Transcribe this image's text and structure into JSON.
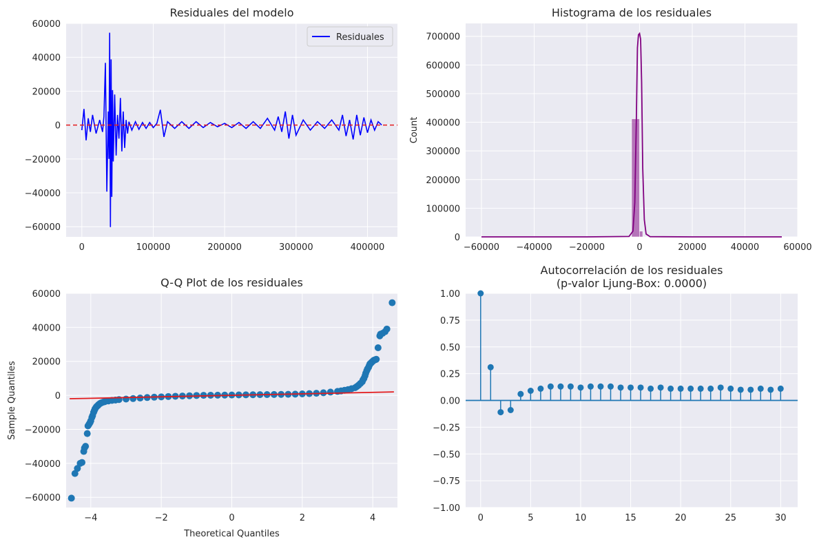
{
  "chart_data": [
    {
      "type": "line",
      "title": "Residuales del modelo",
      "xlabel": "",
      "ylabel": "",
      "xlim": [
        -22000,
        442000
      ],
      "ylim": [
        -66000,
        60000
      ],
      "xticks": [
        0,
        100000,
        200000,
        300000,
        400000
      ],
      "yticks": [
        -60000,
        -40000,
        -20000,
        0,
        20000,
        40000,
        60000
      ],
      "legend": "top-right",
      "grid": true,
      "reference_line": {
        "y": 0,
        "color": "#e31a1c",
        "style": "dashed"
      },
      "series": [
        {
          "name": "Residuales",
          "color": "#0000ff",
          "x": [
            0,
            3000,
            6000,
            9000,
            12000,
            15000,
            20000,
            25000,
            29000,
            31000,
            33000,
            35000,
            37000,
            38000,
            39000,
            40000,
            41000,
            42000,
            43000,
            44000,
            46000,
            48000,
            50000,
            52000,
            54000,
            56000,
            58000,
            60000,
            62000,
            64000,
            66000,
            70000,
            75000,
            80000,
            85000,
            90000,
            95000,
            100000,
            105000,
            110000,
            115000,
            120000,
            130000,
            140000,
            150000,
            160000,
            170000,
            180000,
            190000,
            200000,
            210000,
            220000,
            230000,
            240000,
            250000,
            260000,
            270000,
            275000,
            280000,
            285000,
            290000,
            295000,
            300000,
            310000,
            320000,
            330000,
            340000,
            350000,
            360000,
            365000,
            370000,
            375000,
            380000,
            385000,
            390000,
            395000,
            400000,
            405000,
            410000,
            415000,
            420000
          ],
          "values": [
            -3000,
            9500,
            -9000,
            4000,
            -4000,
            6000,
            -5000,
            3000,
            -4000,
            5000,
            36700,
            -39300,
            8000,
            -20000,
            54500,
            -60200,
            38800,
            -42400,
            20600,
            -21500,
            18000,
            -18000,
            6000,
            -8000,
            16000,
            -15500,
            8000,
            -13500,
            3000,
            -5000,
            2000,
            -3000,
            2000,
            -2500,
            1500,
            -2000,
            1500,
            -1500,
            1000,
            9000,
            -7000,
            2000,
            -2000,
            2000,
            -2000,
            2000,
            -1500,
            1500,
            -1000,
            1000,
            -1500,
            1500,
            -2000,
            2000,
            -2000,
            4000,
            -3000,
            5000,
            -4000,
            8000,
            -8000,
            6000,
            -6000,
            3000,
            -3000,
            2000,
            -2000,
            3000,
            -3000,
            6000,
            -6500,
            3000,
            -8500,
            6000,
            -6000,
            4500,
            -4500,
            3000,
            -3000,
            2000,
            0
          ]
        }
      ]
    },
    {
      "type": "bar",
      "title": "Histograma de los residuales",
      "xlabel": "",
      "ylabel": "Count",
      "xlim": [
        -66000,
        60000
      ],
      "ylim": [
        0,
        745000
      ],
      "xticks": [
        -60000,
        -40000,
        -20000,
        0,
        20000,
        40000,
        60000
      ],
      "yticks": [
        0,
        100000,
        200000,
        300000,
        400000,
        500000,
        600000,
        700000
      ],
      "grid": true,
      "series": [
        {
          "name": "",
          "color": "#800080",
          "bins": [
            {
              "x0": -3000,
              "x1": 0,
              "value": 412000
            },
            {
              "x0": 0,
              "x1": 1200,
              "value": 20000
            }
          ]
        },
        {
          "name": "",
          "type": "kde",
          "color": "#800080",
          "x": [
            -60000,
            -20000,
            -4000,
            -2500,
            -1800,
            -1200,
            -800,
            -400,
            0,
            400,
            800,
            1200,
            1800,
            2500,
            4000,
            20000,
            54000
          ],
          "values": [
            0,
            0,
            1500,
            20000,
            120000,
            420000,
            660000,
            705000,
            710000,
            690000,
            540000,
            240000,
            60000,
            10000,
            800,
            0,
            0
          ]
        }
      ]
    },
    {
      "type": "scatter",
      "title": "Q-Q Plot de los residuales",
      "xlabel": "Theoretical Quantiles",
      "ylabel": "Sample Quantiles",
      "xlim": [
        -4.7,
        4.7
      ],
      "ylim": [
        -66000,
        60000
      ],
      "xticks": [
        -4,
        -2,
        0,
        2,
        4
      ],
      "yticks": [
        -60000,
        -40000,
        -20000,
        0,
        20000,
        40000,
        60000
      ],
      "grid": true,
      "reference_line": {
        "x": [
          -4.6,
          4.6
        ],
        "y": [
          -2000,
          2000
        ],
        "color": "#e31a1c"
      },
      "series": [
        {
          "name": "",
          "color": "#1f77b4",
          "x": [
            -4.55,
            -4.45,
            -4.38,
            -4.3,
            -4.25,
            -4.2,
            -4.18,
            -4.15,
            -4.1,
            -4.08,
            -4.05,
            -4.02,
            -4.0,
            -3.97,
            -3.95,
            -3.92,
            -3.9,
            -3.88,
            -3.85,
            -3.83,
            -3.8,
            -3.78,
            -3.75,
            -3.72,
            -3.7,
            -3.65,
            -3.6,
            -3.5,
            -3.4,
            -3.3,
            -3.2,
            -3.0,
            -2.8,
            -2.6,
            -2.4,
            -2.2,
            -2.0,
            -1.8,
            -1.6,
            -1.4,
            -1.2,
            -1.0,
            -0.8,
            -0.6,
            -0.4,
            -0.2,
            0.0,
            0.2,
            0.4,
            0.6,
            0.8,
            1.0,
            1.2,
            1.4,
            1.6,
            1.8,
            2.0,
            2.2,
            2.4,
            2.6,
            2.8,
            3.0,
            3.1,
            3.2,
            3.3,
            3.4,
            3.5,
            3.55,
            3.6,
            3.65,
            3.7,
            3.72,
            3.75,
            3.78,
            3.8,
            3.83,
            3.85,
            3.88,
            3.9,
            3.92,
            3.95,
            3.97,
            4.0,
            4.02,
            4.05,
            4.08,
            4.1,
            4.15,
            4.2,
            4.22,
            4.28,
            4.35,
            4.4,
            4.55
          ],
          "values": [
            -60500,
            -46000,
            -43000,
            -40000,
            -39500,
            -33000,
            -31000,
            -30000,
            -22500,
            -18000,
            -17000,
            -16000,
            -15000,
            -13000,
            -12000,
            -10000,
            -9000,
            -8000,
            -7000,
            -6500,
            -6000,
            -5500,
            -5000,
            -4600,
            -4400,
            -4000,
            -3700,
            -3300,
            -3000,
            -2800,
            -2500,
            -2200,
            -1900,
            -1600,
            -1300,
            -1100,
            -900,
            -700,
            -550,
            -400,
            -250,
            -100,
            0,
            50,
            100,
            150,
            200,
            250,
            300,
            350,
            400,
            450,
            500,
            550,
            600,
            700,
            850,
            1000,
            1200,
            1500,
            1900,
            2300,
            2600,
            3000,
            3400,
            3900,
            4500,
            5200,
            6000,
            7000,
            8000,
            9000,
            10000,
            11500,
            13000,
            14500,
            15500,
            16500,
            17500,
            18500,
            19000,
            19500,
            20000,
            20500,
            20800,
            21000,
            21200,
            28000,
            35000,
            36000,
            36500,
            37500,
            39000,
            54500
          ]
        }
      ]
    },
    {
      "type": "stem",
      "title": "Autocorrelación de los residuales",
      "subtitle": "(p-valor Ljung-Box: 0.0000)",
      "xlabel": "",
      "ylabel": "",
      "xlim": [
        -1.5,
        31.7
      ],
      "ylim": [
        -1.0,
        1.0
      ],
      "xticks": [
        0,
        5,
        10,
        15,
        20,
        25,
        30
      ],
      "yticks": [
        -1.0,
        -0.75,
        -0.5,
        -0.25,
        0.0,
        0.25,
        0.5,
        0.75,
        1.0
      ],
      "ytick_labels": [
        "−1.00",
        "−0.75",
        "−0.50",
        "−0.25",
        "0.00",
        "0.25",
        "0.50",
        "0.75",
        "1.00"
      ],
      "grid": true,
      "series": [
        {
          "name": "",
          "color": "#1f77b4",
          "x": [
            0,
            1,
            2,
            3,
            4,
            5,
            6,
            7,
            8,
            9,
            10,
            11,
            12,
            13,
            14,
            15,
            16,
            17,
            18,
            19,
            20,
            21,
            22,
            23,
            24,
            25,
            26,
            27,
            28,
            29,
            30
          ],
          "values": [
            1.0,
            0.31,
            -0.11,
            -0.09,
            0.06,
            0.09,
            0.11,
            0.13,
            0.13,
            0.13,
            0.12,
            0.13,
            0.13,
            0.13,
            0.12,
            0.12,
            0.12,
            0.11,
            0.12,
            0.11,
            0.11,
            0.11,
            0.11,
            0.11,
            0.12,
            0.11,
            0.1,
            0.1,
            0.11,
            0.1,
            0.11
          ]
        }
      ]
    }
  ],
  "colors": {
    "plot_bg": "#eaeaf2",
    "grid": "#ffffff",
    "text": "#262626"
  }
}
